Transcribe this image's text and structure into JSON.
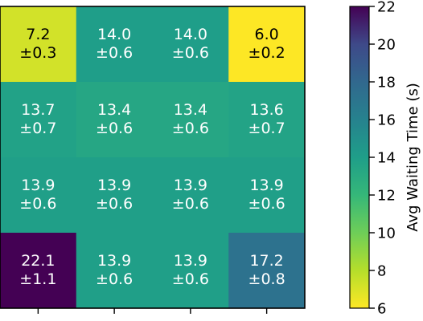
{
  "chart_data": {
    "type": "heatmap",
    "title": "",
    "xlabel": "",
    "ylabel": "",
    "rows": 4,
    "cols": 4,
    "values": [
      [
        7.2,
        14.0,
        14.0,
        6.0
      ],
      [
        13.7,
        13.4,
        13.4,
        13.6
      ],
      [
        13.9,
        13.9,
        13.9,
        13.9
      ],
      [
        22.1,
        13.9,
        13.9,
        17.2
      ]
    ],
    "cell_labels": [
      [
        [
          "7.2",
          "±0.3"
        ],
        [
          "14.0",
          "±0.6"
        ],
        [
          "14.0",
          "±0.6"
        ],
        [
          "6.0",
          "±0.2"
        ]
      ],
      [
        [
          "13.7",
          "±0.7"
        ],
        [
          "13.4",
          "±0.6"
        ],
        [
          "13.4",
          "±0.6"
        ],
        [
          "13.6",
          "±0.7"
        ]
      ],
      [
        [
          "13.9",
          "±0.6"
        ],
        [
          "13.9",
          "±0.6"
        ],
        [
          "13.9",
          "±0.6"
        ],
        [
          "13.9",
          "±0.6"
        ]
      ],
      [
        [
          "22.1",
          "±1.1"
        ],
        [
          "13.9",
          "±0.6"
        ],
        [
          "13.9",
          "±0.6"
        ],
        [
          "17.2",
          "±0.8"
        ]
      ]
    ],
    "colormap": "viridis_r",
    "colorbar": {
      "label": "Avg Waiting Time (s)",
      "range": [
        6,
        22
      ],
      "ticks": [
        "6",
        "8",
        "10",
        "12",
        "14",
        "16",
        "18",
        "20",
        "22"
      ]
    },
    "grid": false
  }
}
